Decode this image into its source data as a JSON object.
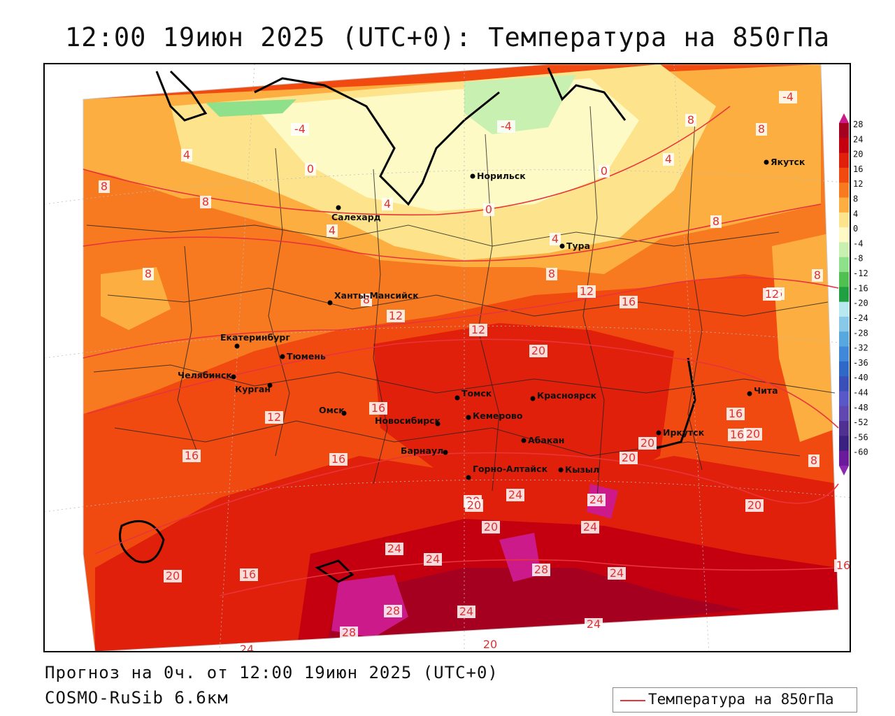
{
  "title": "12:00 19июн 2025 (UTC+0): Температура на 850гПа",
  "footer": {
    "forecast": "Прогноз на 0ч. от 12:00 19июн 2025 (UTC+0)",
    "model": "COSMO-RuSib 6.6км",
    "legend_label": "Температура на 850гПа",
    "legend_color": "#e8343a"
  },
  "colorbar": {
    "labels": [
      "28",
      "24",
      "20",
      "16",
      "12",
      "8",
      "4",
      "0",
      "-4",
      "-8",
      "-12",
      "-16",
      "-20",
      "-24",
      "-28",
      "-32",
      "-36",
      "-40",
      "-44",
      "-48",
      "-52",
      "-56",
      "-60"
    ],
    "colors": [
      "#a50020",
      "#c40010",
      "#e0200a",
      "#f04a10",
      "#f87a20",
      "#fcae40",
      "#fde48c",
      "#fefac6",
      "#c8f0b0",
      "#8ee08a",
      "#50c050",
      "#20a040",
      "#b8e8f0",
      "#88c8e8",
      "#58a8e0",
      "#4088d8",
      "#3068c8",
      "#3a50b8",
      "#5858c8",
      "#6048b0",
      "#503090",
      "#3a2080",
      "#6a1a9a"
    ],
    "top_color": "#cc1a8a",
    "bottom_color": "#8a2ab0"
  },
  "cities": [
    {
      "name": "Норильск"
    },
    {
      "name": "Якутск"
    },
    {
      "name": "Салехард"
    },
    {
      "name": "Тура"
    },
    {
      "name": "Ханты-Мансийск"
    },
    {
      "name": "Екатеринбург"
    },
    {
      "name": "Тюмень"
    },
    {
      "name": "Челябинск"
    },
    {
      "name": "Курган"
    },
    {
      "name": "Омск"
    },
    {
      "name": "Новосибирск"
    },
    {
      "name": "Томск"
    },
    {
      "name": "Кемерово"
    },
    {
      "name": "Красноярск"
    },
    {
      "name": "Абакан"
    },
    {
      "name": "Барнаул"
    },
    {
      "name": "Горно-Алтайск"
    },
    {
      "name": "Кызыл"
    },
    {
      "name": "Иркутск"
    },
    {
      "name": "Чита"
    }
  ],
  "isotherm_labels": [
    "-4",
    "-4",
    "4",
    "0",
    "4",
    "0",
    "-4",
    "4",
    "8",
    "8",
    "8",
    "8",
    "4",
    "0",
    "4",
    "8",
    "8",
    "8",
    "8",
    "12",
    "12",
    "8",
    "16",
    "12",
    "16",
    "12",
    "20",
    "16",
    "16",
    "12",
    "16",
    "16",
    "20",
    "20",
    "20",
    "20",
    "24",
    "24",
    "20",
    "24",
    "20",
    "24",
    "28",
    "24",
    "24",
    "28",
    "28",
    "24",
    "24",
    "20",
    "24",
    "20",
    "16",
    "20",
    "8",
    "16",
    "16"
  ]
}
